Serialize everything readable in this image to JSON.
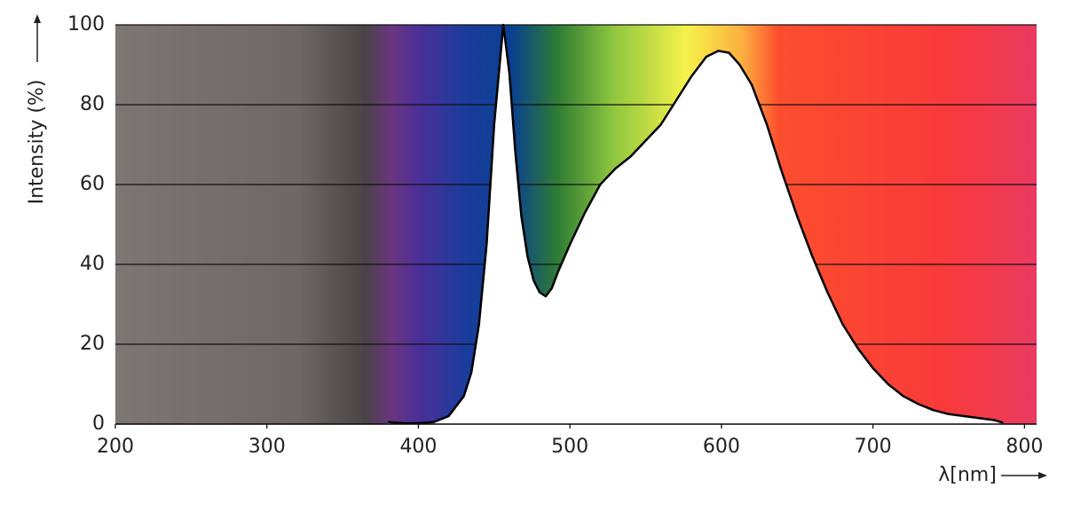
{
  "chart_data": {
    "type": "line",
    "y_label": "Intensity (%)",
    "x_label": "λ[nm]",
    "x": [
      380,
      390,
      400,
      410,
      420,
      430,
      435,
      440,
      445,
      450,
      456,
      460,
      464,
      468,
      472,
      476,
      480,
      484,
      488,
      492,
      500,
      510,
      520,
      530,
      540,
      550,
      560,
      570,
      580,
      590,
      598,
      605,
      612,
      620,
      630,
      640,
      650,
      660,
      670,
      680,
      690,
      700,
      710,
      720,
      730,
      740,
      750,
      760,
      770,
      780,
      786
    ],
    "series": [
      {
        "color": "#000000",
        "fill": "#ffffff",
        "values": [
          0.5,
          0.2,
          0.2,
          0.5,
          2,
          7,
          13,
          25,
          45,
          75,
          100,
          88,
          68,
          52,
          42,
          36,
          33,
          32,
          34,
          38,
          45,
          53,
          60,
          64,
          67,
          71,
          75,
          81,
          87,
          92,
          93.5,
          93,
          90,
          85,
          75,
          63,
          52,
          42,
          33,
          25,
          19,
          14,
          10,
          7,
          5,
          3.5,
          2.5,
          2,
          1.5,
          1,
          0.3
        ]
      }
    ],
    "xlim": [
      200,
      808
    ],
    "ylim": [
      0,
      100
    ],
    "xticks": [
      200,
      300,
      400,
      500,
      600,
      700,
      800
    ],
    "yticks": [
      0,
      20,
      40,
      60,
      80,
      100
    ],
    "grid": true
  }
}
